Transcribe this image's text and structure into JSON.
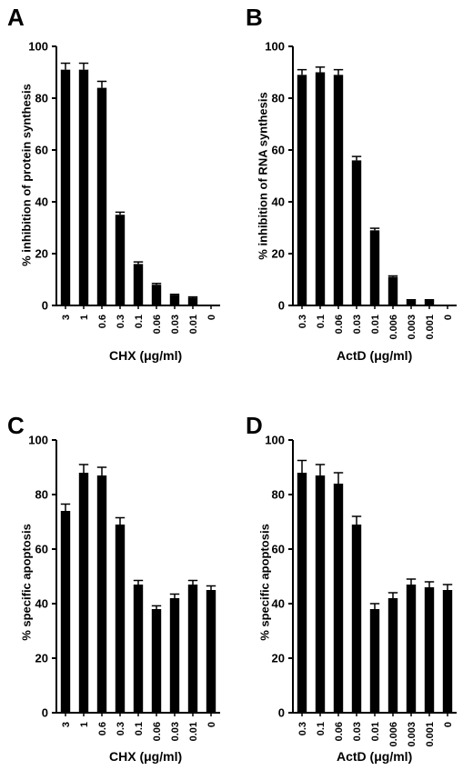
{
  "chart_data": [
    {
      "panel": "A",
      "type": "bar",
      "ylabel": "% inhibition of protein synthesis",
      "xlabel": "CHX (μg/ml)",
      "categories": [
        "3",
        "1",
        "0.6",
        "0.3",
        "0.1",
        "0.06",
        "0.03",
        "0.01",
        "0"
      ],
      "values": [
        91,
        91,
        84,
        35,
        16,
        8,
        4,
        3,
        0
      ],
      "errors": [
        2.5,
        2.5,
        2.5,
        1,
        0.8,
        0.5,
        0.3,
        0.3,
        0
      ],
      "ylim": [
        0,
        100
      ],
      "yticks": [
        "0",
        "20",
        "40",
        "60",
        "80",
        "100"
      ]
    },
    {
      "panel": "B",
      "type": "bar",
      "ylabel": "% inhibition of RNA synthesis",
      "xlabel": "ActD (μg/ml)",
      "categories": [
        "0.3",
        "0.1",
        "0.06",
        "0.03",
        "0.01",
        "0.006",
        "0.003",
        "0.001",
        "0"
      ],
      "values": [
        89,
        90,
        89,
        56,
        29,
        11,
        2,
        2,
        0
      ],
      "errors": [
        2,
        2,
        2,
        1.5,
        0.8,
        0.4,
        0.2,
        0.2,
        0
      ],
      "ylim": [
        0,
        100
      ],
      "yticks": [
        "0",
        "20",
        "40",
        "60",
        "80",
        "100"
      ]
    },
    {
      "panel": "C",
      "type": "bar",
      "ylabel": "% specific apoptosis",
      "xlabel": "CHX (μg/ml)",
      "categories": [
        "3",
        "1",
        "0.6",
        "0.3",
        "0.1",
        "0.06",
        "0.03",
        "0.01",
        "0"
      ],
      "values": [
        74,
        88,
        87,
        69,
        47,
        38,
        42,
        47,
        45
      ],
      "errors": [
        2.5,
        3,
        3,
        2.5,
        1.5,
        1.2,
        1.5,
        1.5,
        1.5
      ],
      "ylim": [
        0,
        100
      ],
      "yticks": [
        "0",
        "20",
        "40",
        "60",
        "80",
        "100"
      ]
    },
    {
      "panel": "D",
      "type": "bar",
      "ylabel": "% specific apoptosis",
      "xlabel": "ActD (μg/ml)",
      "categories": [
        "0.3",
        "0.1",
        "0.06",
        "0.03",
        "0.01",
        "0.006",
        "0.003",
        "0.001",
        "0"
      ],
      "values": [
        88,
        87,
        84,
        69,
        38,
        42,
        47,
        46,
        45
      ],
      "errors": [
        4.5,
        4,
        4,
        3,
        2,
        2,
        2,
        2,
        2
      ],
      "ylim": [
        0,
        100
      ],
      "yticks": [
        "0",
        "20",
        "40",
        "60",
        "80",
        "100"
      ]
    }
  ]
}
